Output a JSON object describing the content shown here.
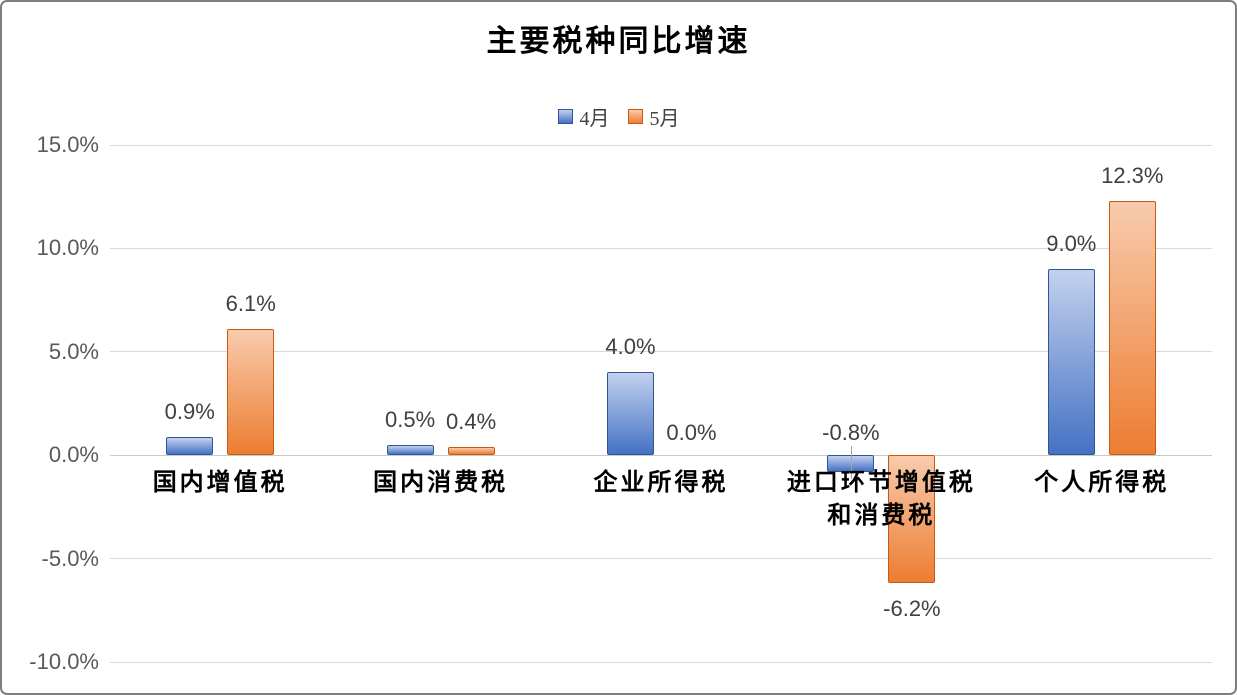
{
  "chart_data": {
    "type": "bar",
    "title": "主要税种同比增速",
    "categories": [
      "国内增值税",
      "国内消费税",
      "企业所得税",
      "进口环节增值税\n和消费税",
      "个人所得税"
    ],
    "series": [
      {
        "name": "4月",
        "values": [
          0.9,
          0.5,
          4.0,
          -0.8,
          9.0
        ],
        "data_labels": [
          "0.9%",
          "0.5%",
          "4.0%",
          "-0.8%",
          "9.0%"
        ],
        "fill_bottom": "#4472c4",
        "fill_top": "#c3d1ee",
        "border": "#2f5597"
      },
      {
        "name": "5月",
        "values": [
          6.1,
          0.4,
          0.0,
          -6.2,
          12.3
        ],
        "data_labels": [
          "6.1%",
          "0.4%",
          "0.0%",
          "-6.2%",
          "12.3%"
        ],
        "fill_bottom": "#ed7d31",
        "fill_top": "#f8cbad",
        "border": "#c55a11"
      }
    ],
    "ylim": [
      -10,
      15
    ],
    "ytick_values": [
      15,
      10,
      5,
      0,
      -5,
      -10
    ],
    "ytick_labels": [
      "15.0%",
      "10.0%",
      "5.0%",
      "0.0%",
      "-5.0%",
      "-10.0%"
    ],
    "grid": true,
    "legend_position": "top",
    "label_overrides": [
      {
        "series": 0,
        "index": 3,
        "position": "above_zero",
        "leader_line": true
      }
    ],
    "colors": {
      "gridline": "#d9d9d9",
      "axis_text": "#595959",
      "data_label_text": "#404040",
      "frame_border": "#7f7f7f"
    }
  }
}
